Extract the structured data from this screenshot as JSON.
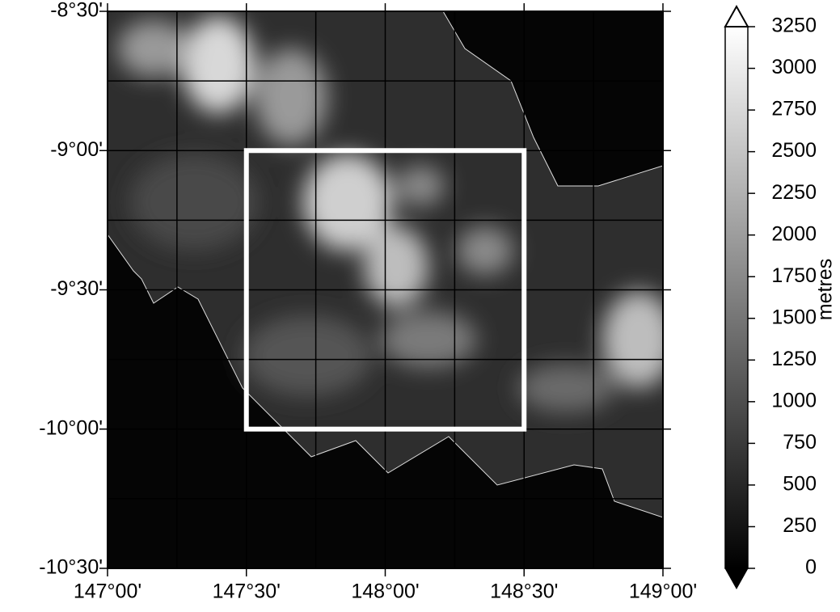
{
  "map": {
    "xlim": [
      147,
      149
    ],
    "ylim": [
      -10.5,
      -8.5
    ],
    "xticks": [
      {
        "value": 147,
        "label": "147°00'"
      },
      {
        "value": 147.5,
        "label": "147°30'"
      },
      {
        "value": 148,
        "label": "148°00'"
      },
      {
        "value": 148.5,
        "label": "148°30'"
      },
      {
        "value": 149,
        "label": "149°00'"
      }
    ],
    "yticks": [
      {
        "value": -8.5,
        "label": "-8°30'"
      },
      {
        "value": -9,
        "label": "-9°00'"
      },
      {
        "value": -9.5,
        "label": "-9°30'"
      },
      {
        "value": -10,
        "label": "-10°00'"
      },
      {
        "value": -10.5,
        "label": "-10°30'"
      }
    ],
    "highlight_box": {
      "xlim": [
        147.5,
        148.5
      ],
      "ylim": [
        -10,
        -9
      ]
    },
    "colorbar": {
      "label": "metres",
      "lim": [
        0,
        3250
      ],
      "ticks": [
        0,
        250,
        500,
        750,
        1000,
        1250,
        1500,
        1750,
        2000,
        2250,
        2500,
        2750,
        3000,
        3250
      ]
    }
  }
}
